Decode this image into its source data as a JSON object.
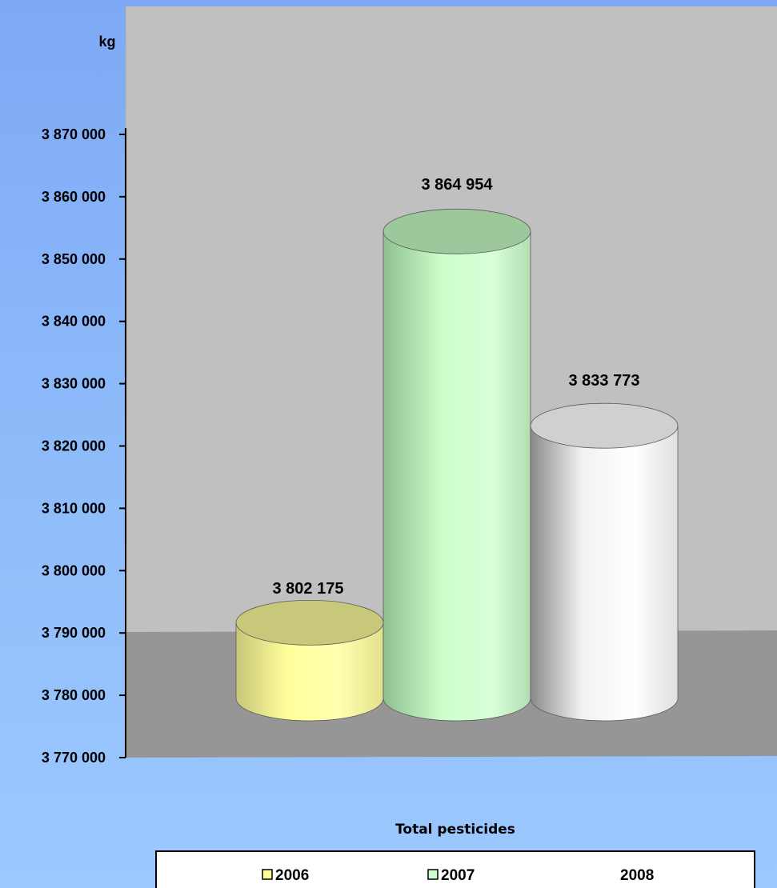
{
  "chart_data": {
    "type": "bar",
    "shape": "3d-cylinder",
    "title": "",
    "xlabel": "",
    "ylabel": "",
    "unit_label": "kg",
    "categories": [
      "Total pesticides"
    ],
    "series": [
      {
        "name": "2006",
        "values": [
          3802175
        ],
        "value_label": "3 802 175",
        "color": "#ffff99"
      },
      {
        "name": "2007",
        "values": [
          3864954
        ],
        "value_label": "3 864 954",
        "color": "#ccffcc"
      },
      {
        "name": "2008",
        "values": [
          3833773
        ],
        "value_label": "3 833 773",
        "color": "#ffffff"
      }
    ],
    "ylim": [
      3770000,
      3870000
    ],
    "y_ticks": [
      3770000,
      3780000,
      3790000,
      3800000,
      3810000,
      3820000,
      3830000,
      3840000,
      3850000,
      3860000,
      3870000
    ],
    "y_tick_labels": [
      "3 770 000",
      "3 780 000",
      "3 790 000",
      "3 800 000",
      "3 810 000",
      "3 820 000",
      "3 830 000",
      "3 840 000",
      "3 850 000",
      "3 860 000",
      "3 870 000"
    ],
    "grid": false,
    "legend_position": "bottom",
    "colors": {
      "plot_wall": "#c0c0c0",
      "plot_floor": "#969696",
      "page_background": "#8fbdfa"
    }
  }
}
